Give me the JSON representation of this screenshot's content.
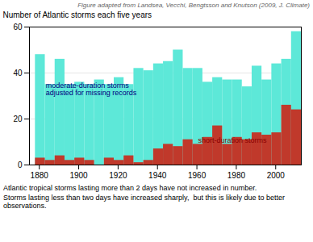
{
  "chart_data": {
    "type": "bar",
    "title": "Figure adapted from Landsea, Vecchi, Bengtsson and Knutson (2009, J. Climate)",
    "ylabel": "Number of Atlantic storms each five years",
    "caption": [
      "Atlantic tropical storms lasting more than 2 days have not increased in number.",
      "Storms lasting less than two days have increased sharply,  but this is likely due to better observations."
    ],
    "x": [
      1878,
      1883,
      1888,
      1893,
      1898,
      1903,
      1908,
      1913,
      1918,
      1923,
      1928,
      1933,
      1938,
      1943,
      1948,
      1953,
      1958,
      1963,
      1968,
      1973,
      1978,
      1983,
      1988,
      1993,
      1998,
      2003,
      2008
    ],
    "series": [
      {
        "name": "moderate-duration storms\nadjusted for missing records",
        "color": "#5de8d8",
        "values": [
          48,
          35,
          46,
          35,
          36,
          35,
          37,
          35,
          38,
          35,
          42,
          41,
          44,
          45,
          50,
          42,
          42,
          36,
          38,
          37,
          37,
          34,
          43,
          37,
          44,
          46,
          58
        ]
      },
      {
        "name": "short-duration storms",
        "color": "#c0392b",
        "values": [
          3,
          2,
          4,
          2,
          3,
          2,
          0,
          3,
          2,
          4,
          1,
          2,
          7,
          9,
          8,
          11,
          9,
          12,
          17,
          9,
          12,
          11,
          14,
          13,
          14,
          26,
          24
        ]
      }
    ],
    "xlim": [
      1875,
      2013
    ],
    "xticks": [
      1880,
      1900,
      1920,
      1940,
      1960,
      1980,
      2000
    ],
    "ylim": [
      0,
      60
    ],
    "yticks": [
      0,
      20,
      40,
      60
    ],
    "grid": true
  }
}
